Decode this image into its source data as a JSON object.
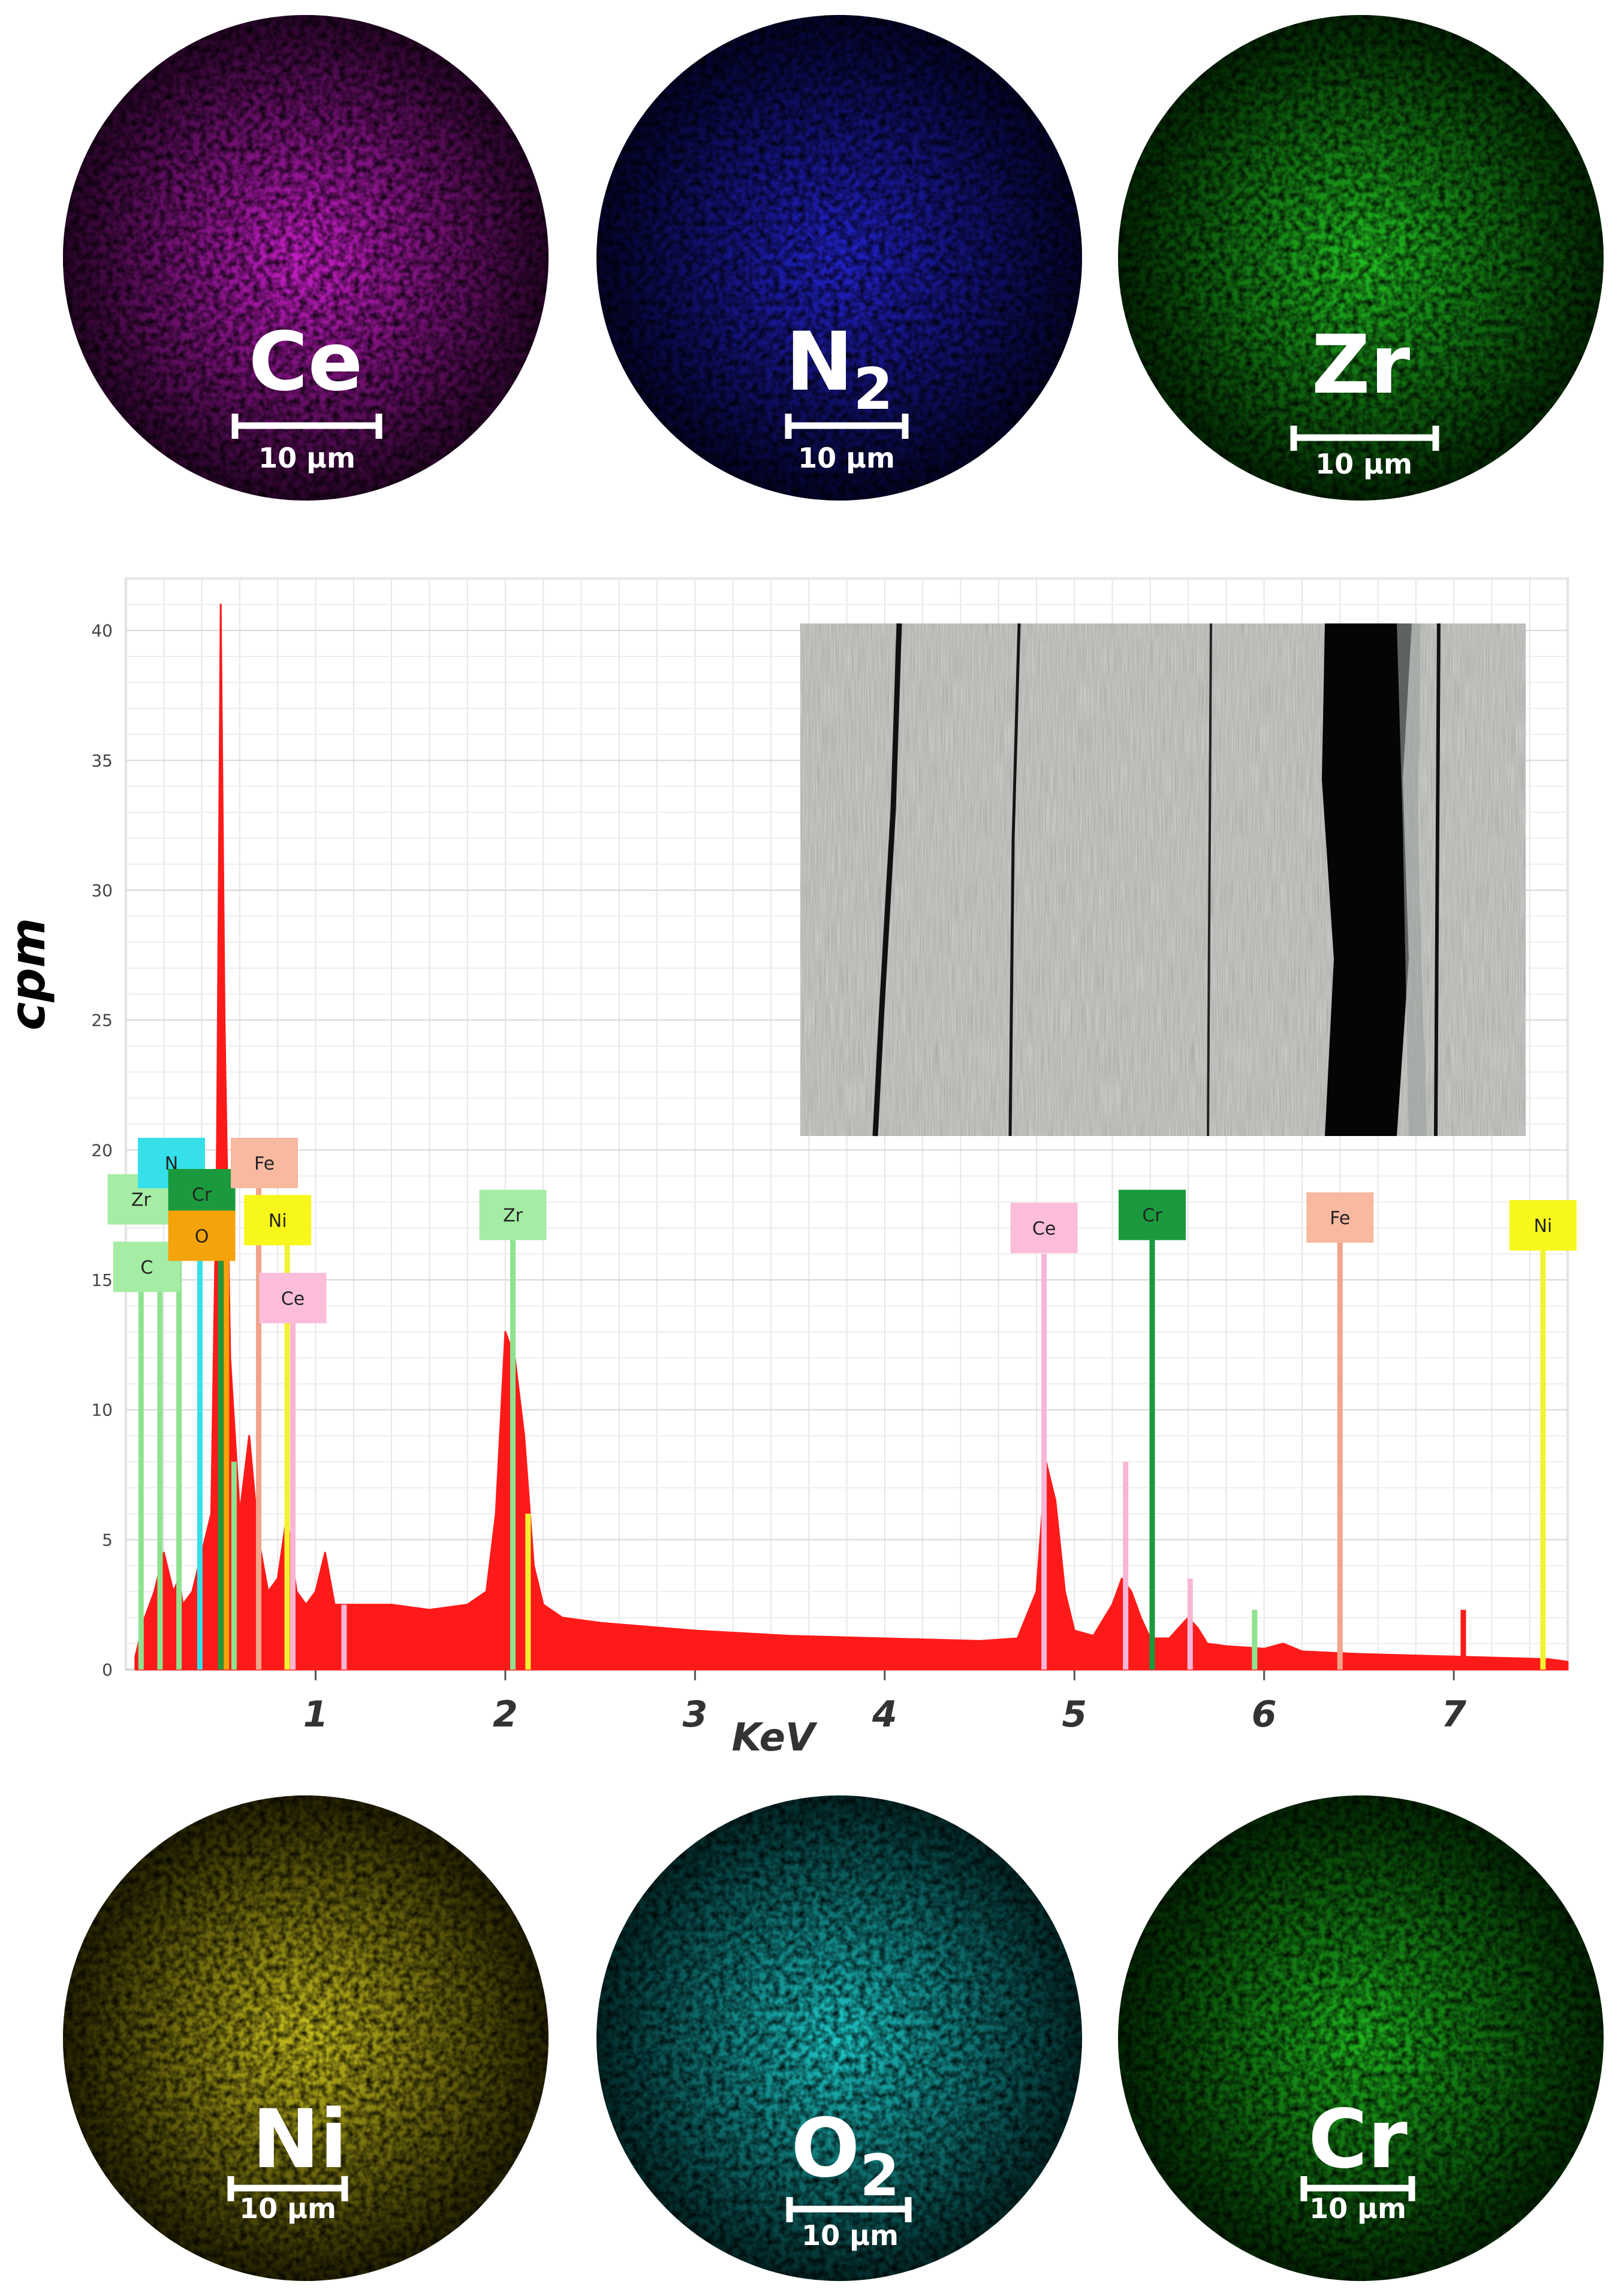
{
  "maps": [
    {
      "element": "Ce",
      "sub": "",
      "scale": "10 µm",
      "color": "#c81ec8",
      "dark": "#2a052a"
    },
    {
      "element": "N",
      "sub": "2",
      "scale": "10 µm",
      "color": "#2222cc",
      "dark": "#04042a"
    },
    {
      "element": "Zr",
      "sub": "",
      "scale": "10 µm",
      "color": "#22c022",
      "dark": "#032803"
    },
    {
      "element": "Ni",
      "sub": "",
      "scale": "10 µm",
      "color": "#c8c01e",
      "dark": "#262300"
    },
    {
      "element": "O",
      "sub": "2",
      "scale": "10 µm",
      "color": "#1ec8c8",
      "dark": "#032a2a"
    },
    {
      "element": "Cr",
      "sub": "",
      "scale": "10 µm",
      "color": "#1eb41e",
      "dark": "#032803"
    }
  ],
  "chart_data": {
    "type": "line",
    "xlabel": "KeV",
    "ylabel": "cpm",
    "xlim": [
      0,
      7.6
    ],
    "ylim": [
      0,
      42
    ],
    "x_ticks": [
      1,
      2,
      3,
      4,
      5,
      6,
      7
    ],
    "x_tick_labels": [
      "1",
      "2",
      "3",
      "4",
      "5",
      "6",
      "7"
    ],
    "y_ticks": [
      0,
      5,
      10,
      15,
      20,
      25,
      30,
      35,
      40
    ],
    "y_tick_labels": [
      "0",
      "5",
      "10",
      "15",
      "20",
      "25",
      "30",
      "35",
      "40"
    ],
    "grid": true,
    "spectrum": {
      "color": "#ff1a1a",
      "x": [
        0.05,
        0.1,
        0.15,
        0.2,
        0.25,
        0.28,
        0.3,
        0.35,
        0.4,
        0.45,
        0.48,
        0.5,
        0.52,
        0.55,
        0.6,
        0.65,
        0.7,
        0.75,
        0.8,
        0.85,
        0.88,
        0.9,
        0.95,
        1.0,
        1.05,
        1.1,
        1.2,
        1.4,
        1.6,
        1.8,
        1.9,
        1.95,
        2.0,
        2.05,
        2.1,
        2.15,
        2.2,
        2.3,
        2.5,
        3.0,
        3.5,
        4.0,
        4.5,
        4.7,
        4.8,
        4.85,
        4.9,
        4.95,
        5.0,
        5.1,
        5.2,
        5.25,
        5.3,
        5.35,
        5.4,
        5.5,
        5.6,
        5.65,
        5.7,
        5.8,
        6.0,
        6.1,
        6.2,
        6.5,
        7.0,
        7.5,
        7.6
      ],
      "y": [
        0.5,
        2.0,
        3.0,
        4.5,
        3.0,
        3.5,
        2.5,
        3.0,
        4.5,
        6.0,
        20.0,
        41.0,
        25.0,
        12.0,
        6.0,
        9.0,
        5.0,
        3.0,
        3.5,
        6.0,
        4.0,
        3.0,
        2.5,
        3.0,
        4.5,
        2.5,
        2.5,
        2.5,
        2.3,
        2.5,
        3.0,
        6.0,
        13.0,
        12.0,
        9.0,
        4.0,
        2.5,
        2.0,
        1.8,
        1.5,
        1.3,
        1.2,
        1.1,
        1.2,
        3.0,
        8.0,
        6.5,
        3.0,
        1.5,
        1.3,
        2.5,
        3.5,
        3.0,
        2.0,
        1.2,
        1.2,
        2.0,
        1.6,
        1.0,
        0.9,
        0.8,
        1.0,
        0.7,
        0.6,
        0.5,
        0.4,
        0.3
      ]
    },
    "peak_lines": [
      {
        "x": 0.08,
        "y": 16,
        "color": "#8fe28f"
      },
      {
        "x": 0.18,
        "y": 16,
        "color": "#8fe28f"
      },
      {
        "x": 0.28,
        "y": 18,
        "color": "#8fe28f"
      },
      {
        "x": 0.39,
        "y": 19,
        "color": "#35e0ea"
      },
      {
        "x": 0.5,
        "y": 17,
        "color": "#1a9a3c"
      },
      {
        "x": 0.53,
        "y": 16.5,
        "color": "#f5a30a"
      },
      {
        "x": 0.57,
        "y": 8,
        "color": "#8fe28f"
      },
      {
        "x": 0.7,
        "y": 19,
        "color": "#f0a58a"
      },
      {
        "x": 0.85,
        "y": 17,
        "color": "#f2f230"
      },
      {
        "x": 0.88,
        "y": 14,
        "color": "#f9b5d6"
      },
      {
        "x": 1.15,
        "y": 2.5,
        "color": "#f9b5d6"
      },
      {
        "x": 2.04,
        "y": 17,
        "color": "#8fe28f"
      },
      {
        "x": 2.12,
        "y": 6,
        "color": "#f2f230"
      },
      {
        "x": 4.84,
        "y": 16,
        "color": "#f9b5d6"
      },
      {
        "x": 5.27,
        "y": 8,
        "color": "#f9b5d6"
      },
      {
        "x": 5.41,
        "y": 17,
        "color": "#1a9a3c"
      },
      {
        "x": 5.61,
        "y": 3.5,
        "color": "#f9b5d6"
      },
      {
        "x": 5.95,
        "y": 2.3,
        "color": "#8fe28f"
      },
      {
        "x": 6.4,
        "y": 17,
        "color": "#f0a58a"
      },
      {
        "x": 7.05,
        "y": 2.3,
        "color": "#ff1a1a"
      },
      {
        "x": 7.47,
        "y": 16.5,
        "color": "#f2f230"
      }
    ],
    "peak_labels": [
      {
        "text": "Zr",
        "x": 0.08,
        "y": 18.1,
        "color": "#a5eca5"
      },
      {
        "text": "N",
        "x": 0.24,
        "y": 19.5,
        "color": "#35e0ea"
      },
      {
        "text": "Cr",
        "x": 0.4,
        "y": 18.3,
        "color": "#1a9a3c"
      },
      {
        "text": "C",
        "x": 0.11,
        "y": 15.5,
        "color": "#a5eca5"
      },
      {
        "text": "O",
        "x": 0.4,
        "y": 16.7,
        "color": "#f5a30a"
      },
      {
        "text": "Fe",
        "x": 0.73,
        "y": 19.5,
        "color": "#f8b9a0"
      },
      {
        "text": "Ni",
        "x": 0.8,
        "y": 17.3,
        "color": "#f7f71b"
      },
      {
        "text": "Ce",
        "x": 0.88,
        "y": 14.3,
        "color": "#fbbdda"
      },
      {
        "text": "Zr",
        "x": 2.04,
        "y": 17.5,
        "color": "#a5eca5"
      },
      {
        "text": "Ce",
        "x": 4.84,
        "y": 17.0,
        "color": "#fbbdda"
      },
      {
        "text": "Cr",
        "x": 5.41,
        "y": 17.5,
        "color": "#1a9a3c"
      },
      {
        "text": "Fe",
        "x": 6.4,
        "y": 17.4,
        "color": "#f8b9a0"
      },
      {
        "text": "Ni",
        "x": 7.47,
        "y": 17.1,
        "color": "#f7f71b"
      }
    ]
  }
}
